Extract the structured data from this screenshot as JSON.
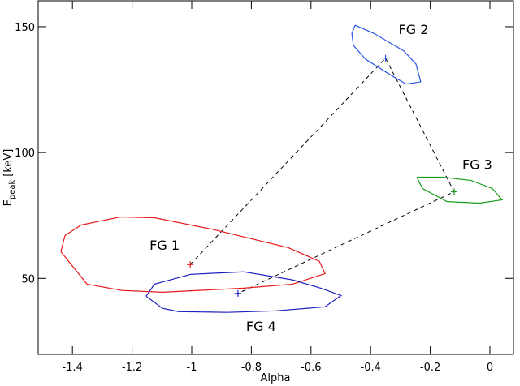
{
  "chart_data": {
    "type": "contour",
    "xlabel": "Alpha",
    "ylabel": {
      "main": "E",
      "sub": "peak",
      "unit": "[keV]"
    },
    "xlim": [
      -1.515,
      0.079
    ],
    "ylim": [
      19.8,
      160.3
    ],
    "xticks": [
      -1.4,
      -1.2,
      -1,
      -0.8,
      -0.6,
      -0.4,
      -0.2,
      0
    ],
    "yticks": [
      50,
      100,
      150
    ],
    "link_order": [
      0,
      1,
      2,
      3
    ],
    "series": [
      {
        "name": "FG 1",
        "color": "#e8191a",
        "point": {
          "x": -1.005,
          "y": 55.5
        },
        "contour": {
          "x": [
            -1.439,
            -1.425,
            -1.371,
            -1.24,
            -1.125,
            -0.935,
            -0.676,
            -0.572,
            -0.553,
            -0.662,
            -0.826,
            -1.098,
            -1.234,
            -1.351,
            -1.439
          ],
          "y": [
            60.6,
            67.0,
            71.2,
            74.4,
            74.1,
            69.6,
            62.2,
            56.8,
            51.9,
            47.7,
            46.1,
            44.5,
            45.2,
            47.7,
            60.6
          ]
        }
      },
      {
        "name": "FG 2",
        "color": "#2a55e0",
        "point": {
          "x": -0.35,
          "y": 137.5
        },
        "contour": {
          "x": [
            -0.452,
            -0.39,
            -0.289,
            -0.248,
            -0.232,
            -0.281,
            -0.341,
            -0.417,
            -0.458,
            -0.463,
            -0.452
          ],
          "y": [
            150.6,
            147.4,
            140.4,
            135.2,
            128.1,
            127.2,
            131.4,
            137.1,
            142.6,
            147.4,
            150.6
          ]
        }
      },
      {
        "name": "FG 3",
        "color": "#1a9e1a",
        "point": {
          "x": -0.12,
          "y": 84.4
        },
        "contour": {
          "x": [
            -0.245,
            -0.226,
            -0.144,
            -0.035,
            0.041,
            0.008,
            -0.063,
            -0.158,
            -0.245
          ],
          "y": [
            90.2,
            85.7,
            80.5,
            79.9,
            81.2,
            85.7,
            88.9,
            90.2,
            90.2
          ]
        }
      },
      {
        "name": "FG 4",
        "color": "#1f1fc0",
        "point": {
          "x": -0.845,
          "y": 44.0
        },
        "contour": {
          "x": [
            -1.153,
            -1.125,
            -1.003,
            -0.826,
            -0.662,
            -0.567,
            -0.499,
            -0.553,
            -0.717,
            -0.88,
            -1.044,
            -1.098,
            -1.153
          ],
          "y": [
            42.9,
            47.7,
            51.6,
            52.6,
            49.4,
            46.1,
            43.2,
            38.7,
            37.1,
            36.5,
            36.8,
            38.1,
            42.9
          ]
        }
      }
    ]
  }
}
